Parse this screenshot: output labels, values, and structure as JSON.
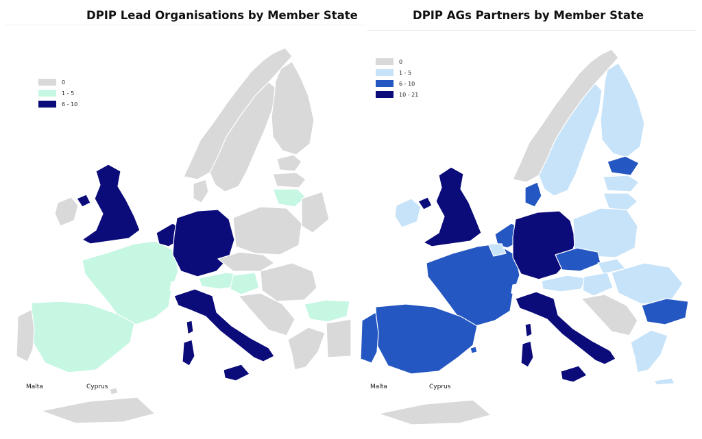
{
  "maps": [
    {
      "title": "DPIP Lead Organisations by Member State",
      "legend": [
        {
          "label": "0",
          "color": "#d9d9d9"
        },
        {
          "label": "1 - 5",
          "color": "#c6f7e3"
        },
        {
          "label": "6 - 10",
          "color": "#0b0b7a"
        }
      ],
      "labels": {
        "malta": "Malta",
        "cyprus": "Cyprus"
      }
    },
    {
      "title": "DPIP AGs Partners by Member State",
      "legend": [
        {
          "label": "0",
          "color": "#d9d9d9"
        },
        {
          "label": "1 - 5",
          "color": "#c6e3f9"
        },
        {
          "label": "6 - 10",
          "color": "#2557c2"
        },
        {
          "label": "10 - 21",
          "color": "#0b0b7a"
        }
      ],
      "labels": {
        "malta": "Malta",
        "cyprus": "Cyprus"
      }
    }
  ]
}
